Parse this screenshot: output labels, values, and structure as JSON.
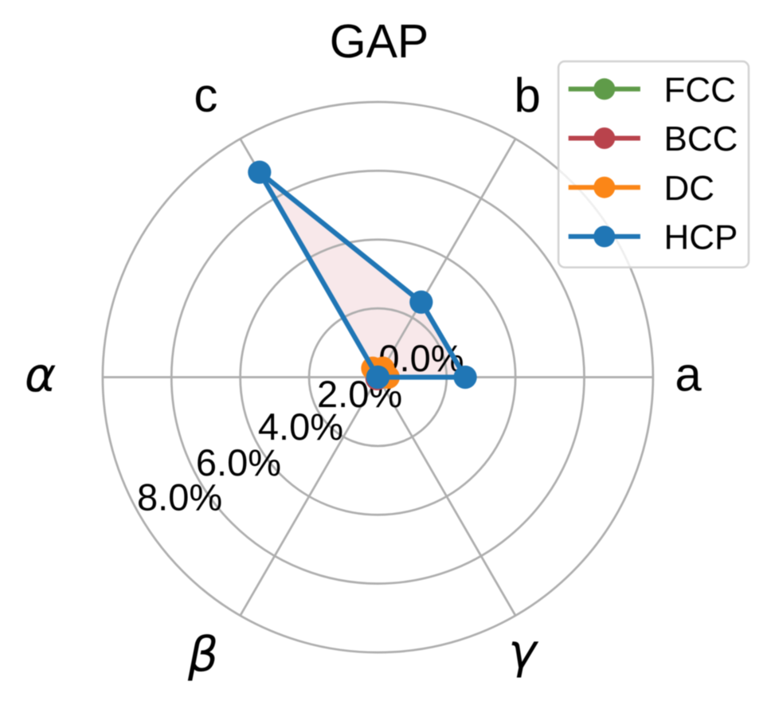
{
  "chart_data": {
    "type": "radar",
    "title": "GAP",
    "categories": [
      "a",
      "b",
      "c",
      "α",
      "β",
      "γ"
    ],
    "angles_deg": [
      0,
      60,
      120,
      180,
      240,
      300
    ],
    "series": [
      {
        "name": "FCC",
        "color": "#5f9b49",
        "values": [
          0.0,
          0.0,
          0.0,
          0.0,
          0.0,
          0.0
        ]
      },
      {
        "name": "BCC",
        "color": "#b9434c",
        "values": [
          0.0,
          0.0,
          0.0,
          0.0,
          0.05,
          0.0
        ]
      },
      {
        "name": "DC",
        "color": "#fb8617",
        "values": [
          0.3,
          0.3,
          0.3,
          0.0,
          0.0,
          0.0
        ]
      },
      {
        "name": "HCP",
        "color": "#2076b5",
        "values": [
          2.54,
          2.52,
          6.88,
          0.0,
          0.0,
          0.0
        ]
      }
    ],
    "fill": {
      "series": "HCP",
      "color": "#f8e8ea"
    },
    "r_axis": {
      "min": 0,
      "max": 8,
      "ticks": [
        0,
        2,
        4,
        6,
        8
      ],
      "tick_labels": [
        "0.0%",
        "2.0%",
        "4.0%",
        "6.0%",
        "8.0%"
      ],
      "unit": "%",
      "label_angle_deg": 211
    },
    "grid": {
      "show": true,
      "color": "#aeaeae"
    },
    "legend": {
      "position": "upper right",
      "entries": [
        "FCC",
        "BCC",
        "DC",
        "HCP"
      ]
    }
  }
}
